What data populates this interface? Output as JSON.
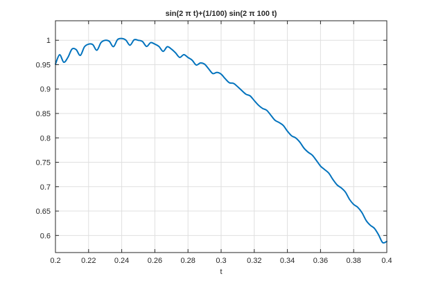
{
  "chart_data": {
    "type": "line",
    "title": "sin(2 π t)+(1/100) sin(2 π 100 t)",
    "xlabel": "t",
    "ylabel": "",
    "xlim": [
      0.2,
      0.4
    ],
    "ylim": [
      0.565,
      1.04
    ],
    "grid": true,
    "xticks": [
      0.2,
      0.22,
      0.24,
      0.26,
      0.28,
      0.3,
      0.32,
      0.34,
      0.36,
      0.38,
      0.4
    ],
    "xtick_labels": [
      "0.2",
      "0.22",
      "0.24",
      "0.26",
      "0.28",
      "0.3",
      "0.32",
      "0.34",
      "0.36",
      "0.38",
      "0.4"
    ],
    "yticks": [
      0.6,
      0.65,
      0.7,
      0.75,
      0.8,
      0.85,
      0.9,
      0.95,
      1
    ],
    "ytick_labels": [
      "0.6",
      "0.65",
      "0.7",
      "0.75",
      "0.8",
      "0.85",
      "0.9",
      "0.95",
      "1"
    ],
    "series": [
      {
        "color": "#0072bd",
        "x": [
          0.2,
          0.2025,
          0.205,
          0.2075,
          0.21,
          0.2125,
          0.215,
          0.2175,
          0.22,
          0.2225,
          0.225,
          0.2275,
          0.23,
          0.2325,
          0.235,
          0.2375,
          0.24,
          0.2425,
          0.245,
          0.2475,
          0.25,
          0.2525,
          0.255,
          0.2575,
          0.26,
          0.2625,
          0.265,
          0.2675,
          0.27,
          0.2725,
          0.275,
          0.2775,
          0.28,
          0.2825,
          0.285,
          0.2875,
          0.29,
          0.2925,
          0.295,
          0.2975,
          0.3,
          0.3025,
          0.305,
          0.3075,
          0.31,
          0.3125,
          0.315,
          0.3175,
          0.32,
          0.3225,
          0.325,
          0.3275,
          0.33,
          0.3325,
          0.335,
          0.3375,
          0.34,
          0.3425,
          0.345,
          0.3475,
          0.35,
          0.3525,
          0.355,
          0.3575,
          0.36,
          0.3625,
          0.365,
          0.3675,
          0.37,
          0.3725,
          0.375,
          0.3775,
          0.38,
          0.3825,
          0.385,
          0.3875,
          0.39,
          0.3925,
          0.395,
          0.3975,
          0.4
        ],
        "y": [
          0.951,
          0.9704,
          0.955,
          0.9649,
          0.982,
          0.9809,
          0.969,
          0.9866,
          0.9921,
          0.9912,
          0.9796,
          0.9953,
          1.0,
          0.9979,
          0.9869,
          1.0015,
          1.0036,
          1.0003,
          0.9899,
          1.001,
          1.0,
          0.9976,
          0.9874,
          0.9953,
          0.9921,
          0.9872,
          0.9773,
          0.9868,
          0.982,
          0.9742,
          0.9649,
          0.9706,
          0.9648,
          0.9592,
          0.9493,
          0.9535,
          0.9511,
          0.9413,
          0.9318,
          0.9342,
          0.9306,
          0.9211,
          0.9129,
          0.9117,
          0.9048,
          0.8969,
          0.8894,
          0.8861,
          0.8764,
          0.8671,
          0.8604,
          0.8566,
          0.8465,
          0.8361,
          0.8315,
          0.8255,
          0.8138,
          0.8043,
          0.7999,
          0.7913,
          0.779,
          0.7707,
          0.7647,
          0.7538,
          0.7422,
          0.735,
          0.7277,
          0.7146,
          0.7036,
          0.6975,
          0.689,
          0.674,
          0.6636,
          0.6576,
          0.6469,
          0.6309,
          0.6211,
          0.6147,
          0.6016,
          0.5854,
          0.5878
        ]
      }
    ]
  }
}
